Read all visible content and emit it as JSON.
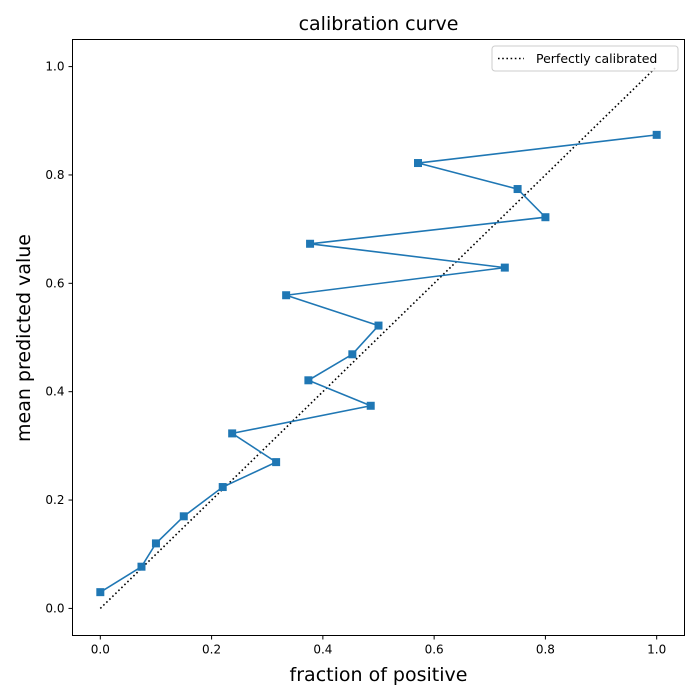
{
  "chart_data": {
    "type": "line",
    "title": "calibration curve",
    "xlabel": "fraction of positive",
    "ylabel": "mean predicted value",
    "xlim": [
      -0.05,
      1.05
    ],
    "ylim": [
      -0.05,
      1.05
    ],
    "xticks": [
      0.0,
      0.2,
      0.4,
      0.6,
      0.8,
      1.0
    ],
    "yticks": [
      0.0,
      0.2,
      0.4,
      0.6,
      0.8,
      1.0
    ],
    "xtick_labels": [
      "0.0",
      "0.2",
      "0.4",
      "0.6",
      "0.8",
      "1.0"
    ],
    "ytick_labels": [
      "0.0",
      "0.2",
      "0.4",
      "0.6",
      "0.8",
      "1.0"
    ],
    "grid": false,
    "legend_position": "upper right",
    "series": [
      {
        "name": "Perfectly calibrated",
        "style": "dotted",
        "color": "#000000",
        "x": [
          0.0,
          1.0
        ],
        "y": [
          0.0,
          1.0
        ]
      },
      {
        "style": "solid",
        "marker": "square",
        "color": "#1f77b4",
        "x": [
          0.0,
          0.074,
          0.1,
          0.15,
          0.22,
          0.316,
          0.237,
          0.486,
          0.374,
          0.453,
          0.5,
          0.334,
          0.727,
          0.377,
          0.8,
          0.75,
          0.571,
          1.0
        ],
        "y": [
          0.03,
          0.077,
          0.12,
          0.17,
          0.224,
          0.27,
          0.323,
          0.374,
          0.421,
          0.469,
          0.522,
          0.578,
          0.629,
          0.673,
          0.722,
          0.774,
          0.822,
          0.874
        ]
      }
    ]
  }
}
